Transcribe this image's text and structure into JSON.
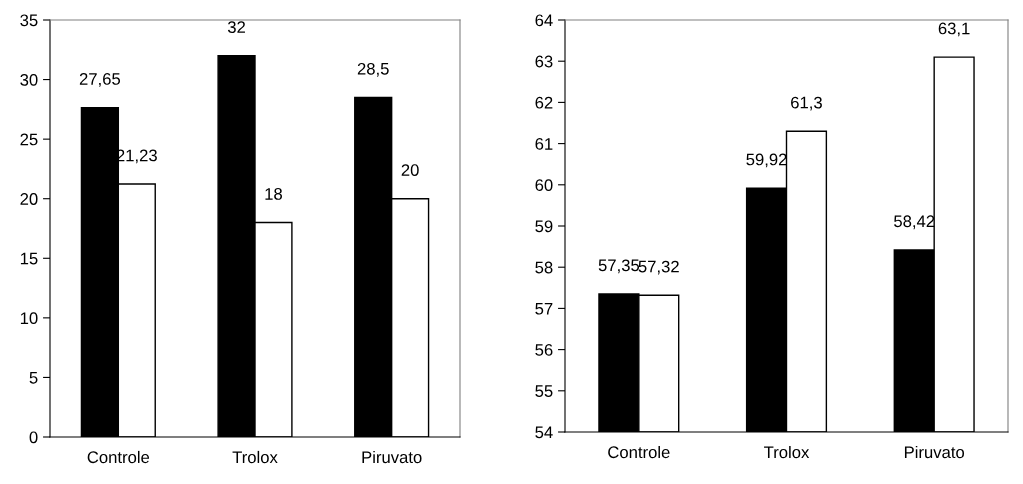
{
  "chart_data": [
    {
      "type": "bar",
      "categories": [
        "Controle",
        "Trolox",
        "Piruvato"
      ],
      "series": [
        {
          "color": "#000000",
          "values": [
            27.65,
            32,
            28.5
          ],
          "value_labels": [
            "27,65",
            "32",
            "28,5"
          ]
        },
        {
          "color": "#ffffff",
          "values": [
            21.23,
            18,
            20
          ],
          "value_labels": [
            "21,23",
            "18",
            "20"
          ]
        }
      ],
      "ylim": [
        0,
        35
      ],
      "yticks": [
        0,
        5,
        10,
        15,
        20,
        25,
        30,
        35
      ],
      "grid": false,
      "legend": false
    },
    {
      "type": "bar",
      "categories": [
        "Controle",
        "Trolox",
        "Piruvato"
      ],
      "series": [
        {
          "color": "#000000",
          "values": [
            57.35,
            59.92,
            58.42
          ],
          "value_labels": [
            "57,35",
            "59,92",
            "58,42"
          ]
        },
        {
          "color": "#ffffff",
          "values": [
            57.32,
            61.3,
            63.1
          ],
          "value_labels": [
            "57,32",
            "61,3",
            "63,1"
          ]
        }
      ],
      "ylim": [
        54,
        64
      ],
      "yticks": [
        54,
        55,
        56,
        57,
        58,
        59,
        60,
        61,
        62,
        63,
        64
      ],
      "grid": false,
      "legend": false
    }
  ]
}
